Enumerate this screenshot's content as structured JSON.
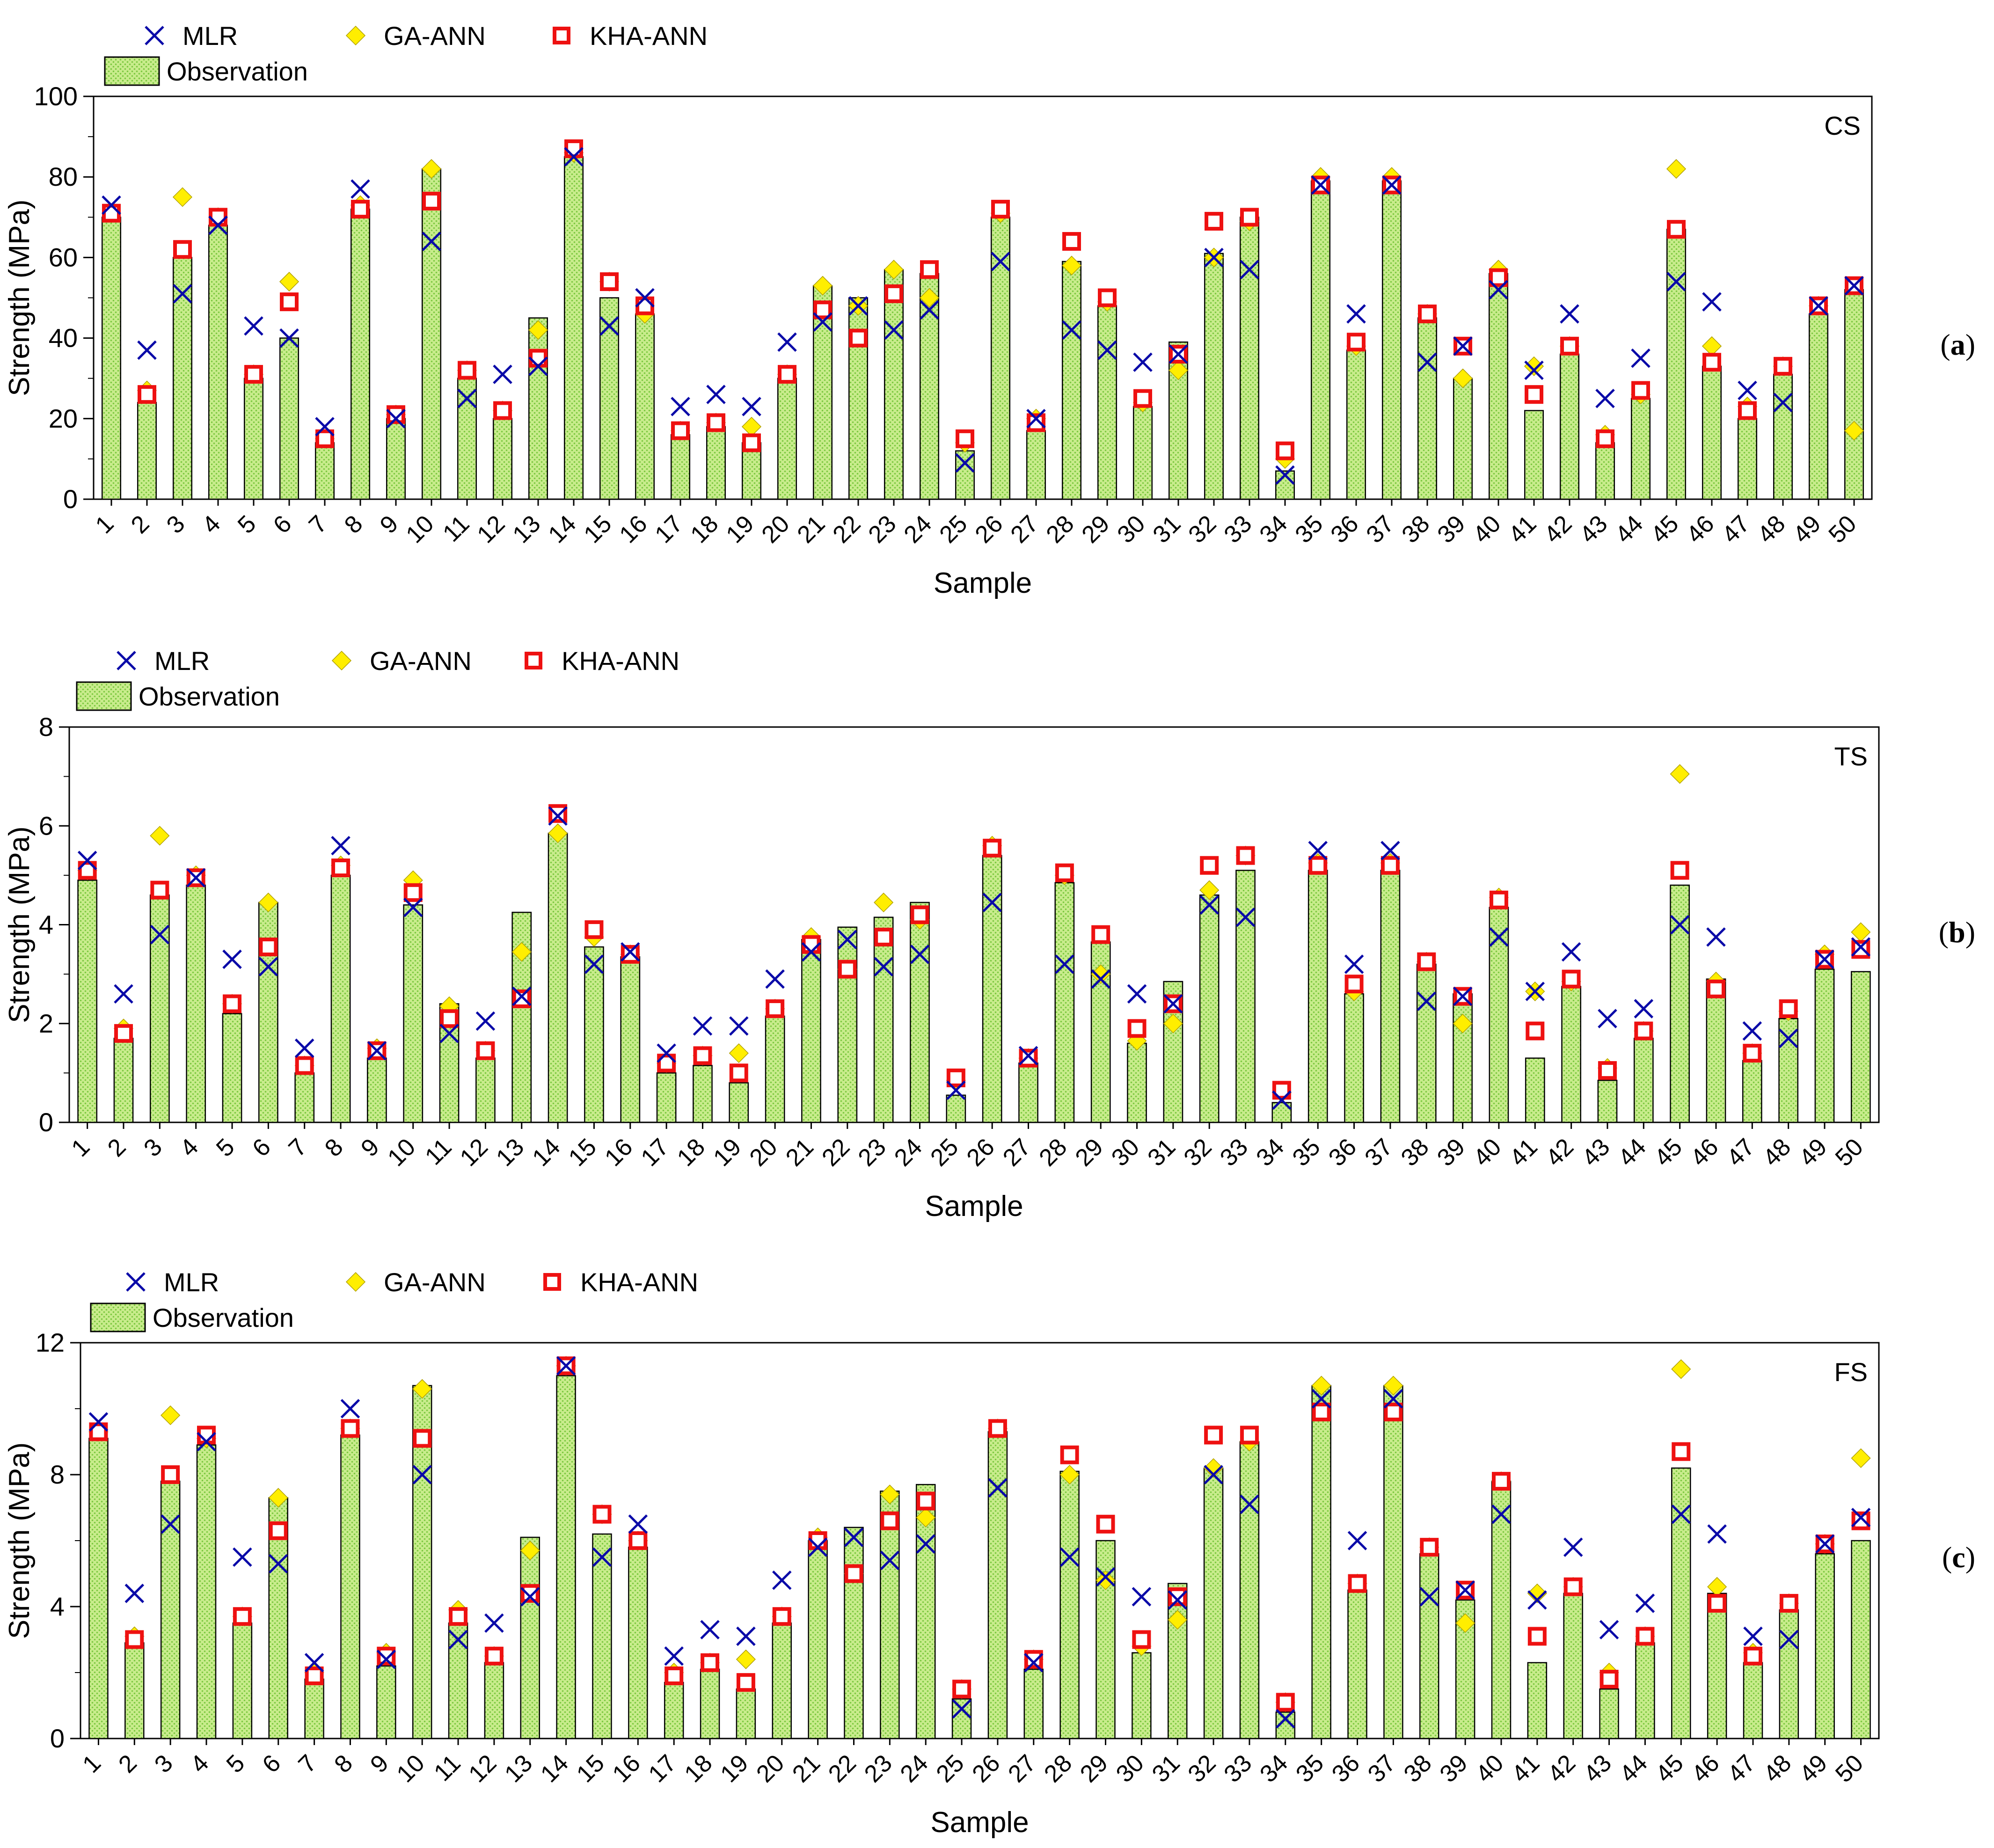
{
  "legend": {
    "mlr": "MLR",
    "ga_ann": "GA-ANN",
    "kha_ann": "KHA-ANN",
    "observation": "Observation"
  },
  "colors": {
    "mlr": "#0a0aa8",
    "ga_ann": "#ffee00",
    "ga_ann_edge": "#b0a000",
    "kha_ann": "#ee1111",
    "bar_fill": "#c8ec8c",
    "bar_dots": "#7cc840",
    "axis": "#000000"
  },
  "chart_data": [
    {
      "id": "a",
      "type": "bar",
      "title": "CS",
      "panel_label_open": "(",
      "panel_label_letter": "a",
      "panel_label_close": ")",
      "xlabel": "Sample",
      "ylabel": "Strength  (MPa)",
      "ylim": [
        0,
        100
      ],
      "yticks": [
        0,
        20,
        40,
        60,
        80,
        100
      ],
      "categories": [
        "1",
        "2",
        "3",
        "4",
        "5",
        "6",
        "7",
        "8",
        "9",
        "10",
        "11",
        "12",
        "13",
        "14",
        "15",
        "16",
        "17",
        "18",
        "19",
        "20",
        "21",
        "22",
        "23",
        "24",
        "25",
        "26",
        "27",
        "28",
        "29",
        "30",
        "31",
        "32",
        "33",
        "34",
        "35",
        "36",
        "37",
        "38",
        "39",
        "40",
        "41",
        "42",
        "43",
        "44",
        "45",
        "46",
        "47",
        "48",
        "49",
        "50"
      ],
      "series": [
        {
          "name": "Observation",
          "values": [
            70,
            24,
            60,
            68,
            30,
            40,
            14,
            72,
            20,
            82,
            30,
            20,
            45,
            85,
            50,
            46,
            16,
            18,
            14,
            30,
            53,
            50,
            57,
            56,
            12,
            70,
            17,
            59,
            48,
            23,
            39,
            61,
            70,
            7,
            79,
            37,
            79,
            45,
            30,
            56,
            22,
            36,
            14,
            25,
            67,
            33,
            20,
            31,
            46,
            52
          ]
        },
        {
          "name": "MLR",
          "values": [
            73,
            37,
            51,
            68,
            43,
            40,
            18,
            77,
            20,
            64,
            25,
            31,
            33,
            85,
            43,
            50,
            23,
            26,
            23,
            39,
            44,
            48,
            42,
            47,
            9,
            59,
            20,
            42,
            37,
            34,
            36,
            60,
            57,
            6,
            78,
            46,
            78,
            34,
            38,
            52,
            32,
            46,
            25,
            35,
            54,
            49,
            27,
            24,
            48,
            53
          ]
        },
        {
          "name": "GA-ANN",
          "values": [
            71,
            27,
            75,
            70,
            31,
            54,
            15,
            73,
            21,
            82,
            32,
            22,
            42,
            86,
            54,
            46,
            17,
            19,
            18,
            31,
            53,
            48,
            57,
            50,
            14,
            71,
            20,
            58,
            49,
            24,
            32,
            60,
            69,
            10,
            80,
            38,
            80,
            46,
            30,
            57,
            33,
            38,
            16,
            26,
            82,
            38,
            23,
            33,
            48,
            17
          ]
        },
        {
          "name": "KHA-ANN",
          "values": [
            71,
            26,
            62,
            70,
            31,
            49,
            15,
            72,
            21,
            74,
            32,
            22,
            35,
            87,
            54,
            48,
            17,
            19,
            14,
            31,
            47,
            40,
            51,
            57,
            15,
            72,
            19,
            64,
            50,
            25,
            36,
            69,
            70,
            12,
            78,
            39,
            78,
            46,
            38,
            55,
            26,
            38,
            15,
            27,
            67,
            34,
            22,
            33,
            48,
            53
          ]
        }
      ]
    },
    {
      "id": "b",
      "type": "bar",
      "title": "TS",
      "panel_label_open": "(",
      "panel_label_letter": "b",
      "panel_label_close": ")",
      "xlabel": "Sample",
      "ylabel": "Strength  (MPa)",
      "ylim": [
        0,
        8
      ],
      "yticks": [
        0,
        2,
        4,
        6,
        8
      ],
      "categories": [
        "1",
        "2",
        "3",
        "4",
        "5",
        "6",
        "7",
        "8",
        "9",
        "10",
        "11",
        "12",
        "13",
        "14",
        "15",
        "16",
        "17",
        "18",
        "19",
        "20",
        "21",
        "22",
        "23",
        "24",
        "25",
        "26",
        "27",
        "28",
        "29",
        "30",
        "31",
        "32",
        "33",
        "34",
        "35",
        "36",
        "37",
        "38",
        "39",
        "40",
        "41",
        "42",
        "43",
        "44",
        "45",
        "46",
        "47",
        "48",
        "49",
        "50"
      ],
      "series": [
        {
          "name": "Observation",
          "values": [
            4.9,
            1.7,
            4.6,
            4.8,
            2.2,
            4.45,
            1.0,
            5.0,
            1.3,
            4.4,
            2.4,
            1.3,
            4.25,
            5.85,
            3.55,
            3.35,
            1.0,
            1.15,
            0.8,
            2.15,
            3.7,
            3.95,
            4.15,
            4.45,
            0.55,
            5.4,
            1.2,
            4.85,
            3.65,
            1.6,
            2.85,
            4.6,
            5.1,
            0.4,
            5.1,
            2.6,
            5.1,
            3.2,
            2.6,
            4.35,
            1.3,
            2.75,
            0.85,
            1.7,
            4.8,
            2.9,
            1.25,
            2.1,
            3.1,
            3.05
          ]
        },
        {
          "name": "MLR",
          "values": [
            5.3,
            2.6,
            3.8,
            4.95,
            3.3,
            3.15,
            1.5,
            5.6,
            1.45,
            4.35,
            1.8,
            2.05,
            2.55,
            6.2,
            3.2,
            3.45,
            1.4,
            1.95,
            1.95,
            2.9,
            3.45,
            3.7,
            3.15,
            3.4,
            0.65,
            4.45,
            1.35,
            3.2,
            2.9,
            2.6,
            2.4,
            4.4,
            4.15,
            0.45,
            5.5,
            3.2,
            5.5,
            2.45,
            2.55,
            3.75,
            2.65,
            3.45,
            2.1,
            2.3,
            4.0,
            3.75,
            1.85,
            1.7,
            3.3,
            3.55
          ]
        },
        {
          "name": "GA-ANN",
          "values": [
            5.1,
            1.9,
            5.8,
            5.0,
            2.4,
            4.45,
            1.15,
            5.2,
            1.5,
            4.9,
            2.35,
            1.45,
            3.45,
            5.85,
            3.75,
            3.4,
            1.2,
            1.35,
            1.4,
            2.3,
            3.75,
            3.1,
            4.45,
            4.1,
            0.85,
            5.6,
            1.3,
            5.0,
            3.0,
            1.65,
            2.0,
            4.7,
            5.4,
            0.6,
            5.25,
            2.65,
            5.25,
            3.25,
            2.0,
            4.55,
            2.65,
            2.85,
            1.1,
            1.85,
            7.05,
            2.85,
            1.4,
            2.25,
            3.4,
            3.85
          ]
        },
        {
          "name": "KHA-ANN",
          "values": [
            5.1,
            1.8,
            4.7,
            4.95,
            2.4,
            3.55,
            1.15,
            5.15,
            1.45,
            4.65,
            2.1,
            1.45,
            2.5,
            6.25,
            3.9,
            3.4,
            1.2,
            1.35,
            1.0,
            2.3,
            3.6,
            3.1,
            3.75,
            4.2,
            0.9,
            5.55,
            1.3,
            5.05,
            3.8,
            1.9,
            2.4,
            5.2,
            5.4,
            0.65,
            5.2,
            2.8,
            5.2,
            3.25,
            2.55,
            4.5,
            1.85,
            2.9,
            1.05,
            1.85,
            5.1,
            2.7,
            1.4,
            2.3,
            3.3,
            3.5
          ]
        }
      ]
    },
    {
      "id": "c",
      "type": "bar",
      "title": "FS",
      "panel_label_open": "(",
      "panel_label_letter": "c",
      "panel_label_close": ")",
      "xlabel": "Sample",
      "ylabel": "Strength  (MPa)",
      "ylim": [
        0,
        12
      ],
      "yticks": [
        0,
        4,
        8,
        12
      ],
      "categories": [
        "1",
        "2",
        "3",
        "4",
        "5",
        "6",
        "7",
        "8",
        "9",
        "10",
        "11",
        "12",
        "13",
        "14",
        "15",
        "16",
        "17",
        "18",
        "19",
        "20",
        "21",
        "22",
        "23",
        "24",
        "25",
        "26",
        "27",
        "28",
        "29",
        "30",
        "31",
        "32",
        "33",
        "34",
        "35",
        "36",
        "37",
        "38",
        "39",
        "40",
        "41",
        "42",
        "43",
        "44",
        "45",
        "46",
        "47",
        "48",
        "49",
        "50"
      ],
      "series": [
        {
          "name": "Observation",
          "values": [
            9.1,
            2.9,
            7.8,
            8.9,
            3.5,
            7.3,
            1.8,
            9.2,
            2.2,
            10.7,
            3.5,
            2.3,
            6.1,
            11.0,
            6.2,
            5.8,
            1.7,
            2.1,
            1.5,
            3.5,
            6.0,
            6.4,
            7.5,
            7.7,
            1.2,
            9.3,
            2.1,
            8.1,
            6.0,
            2.6,
            4.7,
            8.2,
            9.0,
            0.8,
            10.7,
            4.5,
            10.7,
            5.6,
            4.2,
            7.8,
            2.3,
            4.4,
            1.5,
            2.9,
            8.2,
            4.4,
            2.3,
            3.9,
            5.6,
            6.0
          ]
        },
        {
          "name": "MLR",
          "values": [
            9.6,
            4.4,
            6.5,
            9.0,
            5.5,
            5.3,
            2.3,
            10.0,
            2.4,
            8.0,
            3.0,
            3.5,
            4.3,
            11.3,
            5.5,
            6.5,
            2.5,
            3.3,
            3.1,
            4.8,
            5.8,
            6.1,
            5.4,
            5.9,
            0.9,
            7.6,
            2.3,
            5.5,
            4.9,
            4.3,
            4.2,
            8.0,
            7.1,
            0.6,
            10.3,
            6.0,
            10.3,
            4.3,
            4.5,
            6.8,
            4.2,
            5.8,
            3.3,
            4.1,
            6.8,
            6.2,
            3.1,
            3.0,
            5.9,
            6.7
          ]
        },
        {
          "name": "GA-ANN",
          "values": [
            9.3,
            3.1,
            9.8,
            9.1,
            3.7,
            7.3,
            2.0,
            9.4,
            2.6,
            10.6,
            3.9,
            2.5,
            5.7,
            11.3,
            6.8,
            6.0,
            2.0,
            2.3,
            2.4,
            3.7,
            6.1,
            5.0,
            7.4,
            6.7,
            1.5,
            9.4,
            2.4,
            8.0,
            4.8,
            2.8,
            3.6,
            8.2,
            9.0,
            1.1,
            10.7,
            4.7,
            10.7,
            5.8,
            3.5,
            7.8,
            4.4,
            4.6,
            2.0,
            3.1,
            11.2,
            4.6,
            2.6,
            4.1,
            5.9,
            8.5
          ]
        },
        {
          "name": "KHA-ANN",
          "values": [
            9.3,
            3.0,
            8.0,
            9.2,
            3.7,
            6.3,
            1.9,
            9.4,
            2.5,
            9.1,
            3.7,
            2.5,
            4.4,
            11.3,
            6.8,
            6.0,
            1.9,
            2.3,
            1.7,
            3.7,
            6.0,
            5.0,
            6.6,
            7.2,
            1.5,
            9.4,
            2.4,
            8.6,
            6.5,
            3.0,
            4.3,
            9.2,
            9.2,
            1.1,
            9.9,
            4.7,
            9.9,
            5.8,
            4.5,
            7.8,
            3.1,
            4.6,
            1.8,
            3.1,
            8.7,
            4.1,
            2.5,
            4.1,
            5.9,
            6.6
          ]
        }
      ]
    }
  ]
}
